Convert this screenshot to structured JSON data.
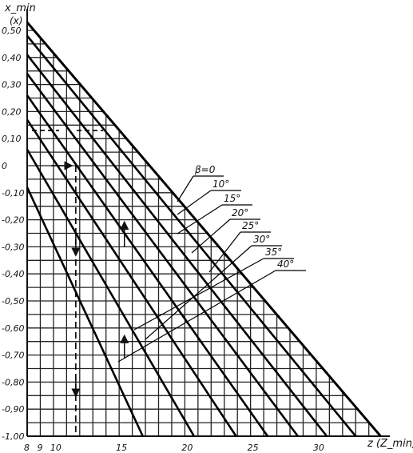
{
  "chart_data": {
    "type": "line",
    "ylabel": "x_min",
    "ylabel_sub": "(x)",
    "xlabel": "z (Z_min)",
    "xlim": [
      8,
      35
    ],
    "ylim": [
      -1.0,
      0.55
    ],
    "y_ticks": [
      "0,50",
      "0,40",
      "0,30",
      "0,20",
      "0,10",
      "0",
      "-0,10",
      "-0,20",
      "-0,30",
      "-0,40",
      "-0,50",
      "-0,60",
      "-0,70",
      "-0,80",
      "-0,90",
      "-1,00"
    ],
    "x_ticks": [
      "8",
      "9",
      "10",
      "15",
      "20",
      "25",
      "30"
    ],
    "grid": "fine grid, step 1 tooth in z and 0.05 in x, bounded by the β=0 line",
    "series": [
      {
        "name": "β=0",
        "x": [
          8,
          34.9
        ],
        "y": [
          0.53,
          -1.0
        ]
      },
      {
        "name": "10°",
        "x": [
          8,
          33.0
        ],
        "y": [
          0.48,
          -1.0
        ]
      },
      {
        "name": "15°",
        "x": [
          8,
          30.8
        ],
        "y": [
          0.41,
          -1.0
        ]
      },
      {
        "name": "20°",
        "x": [
          8,
          28.6
        ],
        "y": [
          0.34,
          -1.0
        ]
      },
      {
        "name": "25°",
        "x": [
          8,
          26.3
        ],
        "y": [
          0.26,
          -1.0
        ]
      },
      {
        "name": "30°",
        "x": [
          8,
          23.9
        ],
        "y": [
          0.17,
          -1.0
        ]
      },
      {
        "name": "35°",
        "x": [
          8,
          20.7
        ],
        "y": [
          0.06,
          -1.0
        ]
      },
      {
        "name": "40°",
        "x": [
          8,
          16.8
        ],
        "y": [
          -0.08,
          -1.0
        ]
      }
    ],
    "example_path": {
      "z": 11.7,
      "x_upper": 0.13,
      "x_lower": 0.0
    }
  }
}
